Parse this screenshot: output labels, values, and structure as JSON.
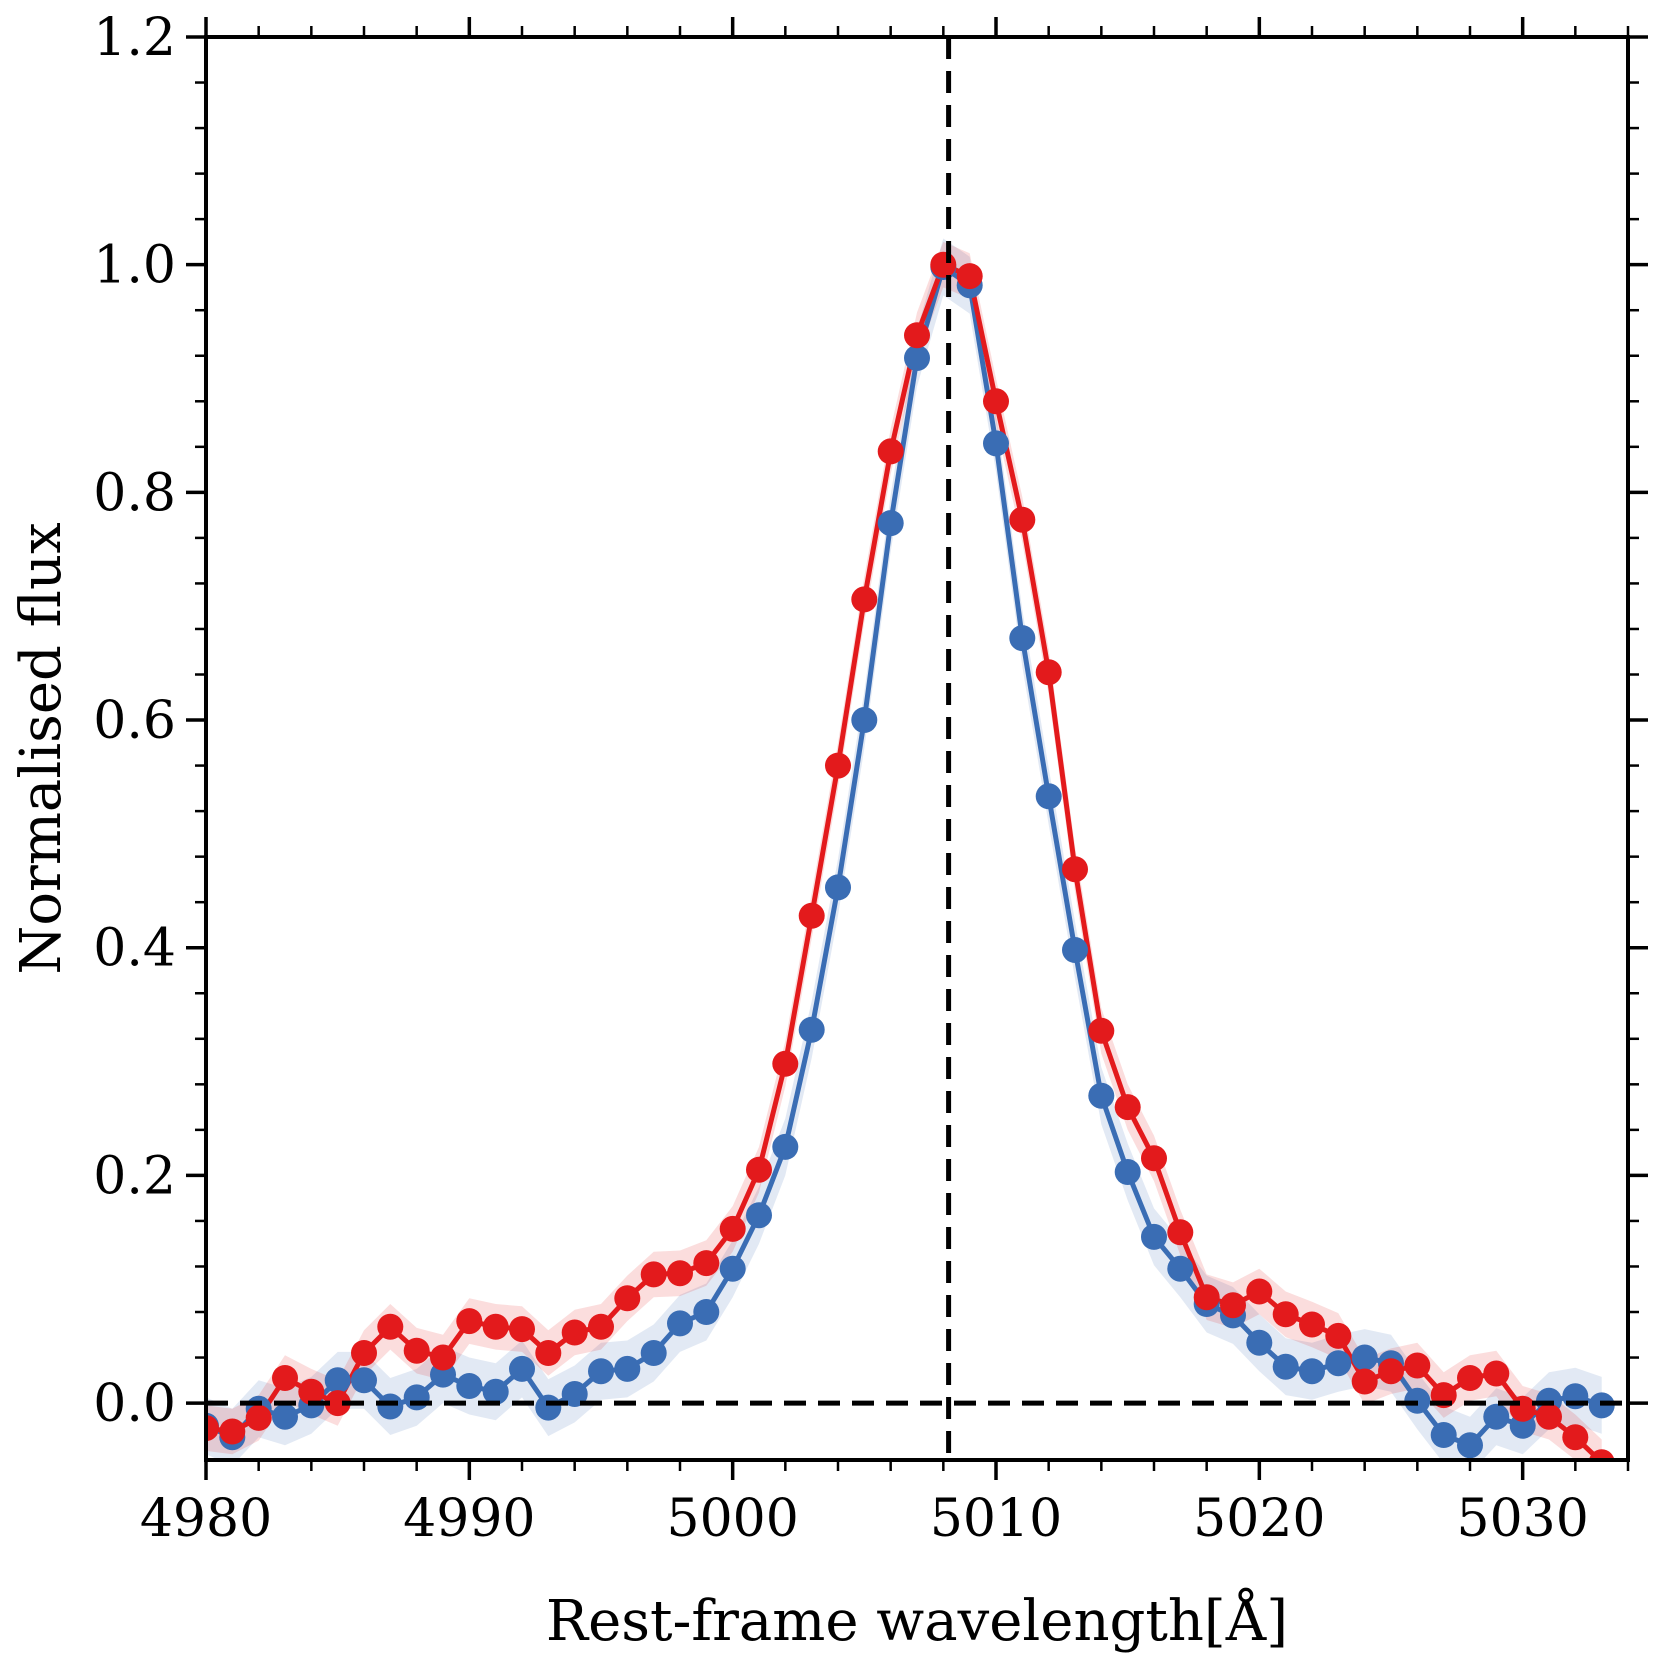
{
  "chart_data": {
    "type": "line",
    "title": "",
    "xlabel": "Rest-frame wavelength[Å]",
    "ylabel": "Normalised flux",
    "xlim": [
      4980,
      5034
    ],
    "ylim": [
      -0.05,
      1.2
    ],
    "xticks": [
      4980,
      4990,
      5000,
      5010,
      5020,
      5030
    ],
    "xtick_labels": [
      "4980",
      "4990",
      "5000",
      "5010",
      "5020",
      "5030"
    ],
    "yticks": [
      0.0,
      0.2,
      0.4,
      0.6,
      0.8,
      1.0,
      1.2
    ],
    "ytick_labels": [
      "0.0",
      "0.2",
      "0.4",
      "0.6",
      "0.8",
      "1.0",
      "1.2"
    ],
    "reference_lines": {
      "vertical_x": 5008.2,
      "horizontal_y": 0.0
    },
    "grid": false,
    "colors": {
      "blue": "#3a6db4",
      "red": "#e31a1c",
      "reference": "#000000"
    },
    "series": [
      {
        "name": "blue",
        "color": "#3a6db4",
        "band_halfwidth": 0.025,
        "x": [
          4980,
          4981,
          4982,
          4983,
          4984,
          4985,
          4986,
          4987,
          4988,
          4989,
          4990,
          4991,
          4992,
          4993,
          4994,
          4995,
          4996,
          4997,
          4998,
          4999,
          5000,
          5001,
          5002,
          5003,
          5004,
          5005,
          5006,
          5007,
          5008,
          5009,
          5010,
          5011,
          5012,
          5013,
          5014,
          5015,
          5016,
          5017,
          5018,
          5019,
          5020,
          5021,
          5022,
          5023,
          5024,
          5025,
          5026,
          5027,
          5028,
          5029,
          5030,
          5031,
          5032,
          5033
        ],
        "values": [
          -0.02,
          -0.03,
          -0.005,
          -0.012,
          -0.002,
          0.02,
          0.02,
          -0.003,
          0.005,
          0.025,
          0.015,
          0.01,
          0.03,
          -0.004,
          0.008,
          0.028,
          0.03,
          0.044,
          0.07,
          0.08,
          0.118,
          0.165,
          0.225,
          0.328,
          0.453,
          0.6,
          0.773,
          0.918,
          0.998,
          0.982,
          0.843,
          0.672,
          0.533,
          0.398,
          0.27,
          0.203,
          0.146,
          0.118,
          0.087,
          0.077,
          0.053,
          0.032,
          0.028,
          0.035,
          0.04,
          0.035,
          0.002,
          -0.028,
          -0.037,
          -0.012,
          -0.02,
          0.002,
          0.006,
          -0.002
        ]
      },
      {
        "name": "red",
        "color": "#e31a1c",
        "band_halfwidth": 0.02,
        "x": [
          4980,
          4981,
          4982,
          4983,
          4984,
          4985,
          4986,
          4987,
          4988,
          4989,
          4990,
          4991,
          4992,
          4993,
          4994,
          4995,
          4996,
          4997,
          4998,
          4999,
          5000,
          5001,
          5002,
          5003,
          5004,
          5005,
          5006,
          5007,
          5008,
          5009,
          5010,
          5011,
          5012,
          5013,
          5014,
          5015,
          5016,
          5017,
          5018,
          5019,
          5020,
          5021,
          5022,
          5023,
          5024,
          5025,
          5026,
          5027,
          5028,
          5029,
          5030,
          5031,
          5032,
          5033
        ],
        "values": [
          -0.022,
          -0.025,
          -0.013,
          0.022,
          0.01,
          0.0,
          0.044,
          0.067,
          0.046,
          0.04,
          0.072,
          0.067,
          0.065,
          0.044,
          0.062,
          0.067,
          0.092,
          0.113,
          0.114,
          0.123,
          0.153,
          0.205,
          0.298,
          0.428,
          0.56,
          0.706,
          0.836,
          0.938,
          1.0,
          0.99,
          0.88,
          0.776,
          0.642,
          0.469,
          0.327,
          0.26,
          0.215,
          0.15,
          0.093,
          0.086,
          0.098,
          0.078,
          0.069,
          0.059,
          0.019,
          0.028,
          0.033,
          0.007,
          0.022,
          0.026,
          -0.005,
          -0.012,
          -0.03,
          -0.052
        ]
      }
    ]
  }
}
